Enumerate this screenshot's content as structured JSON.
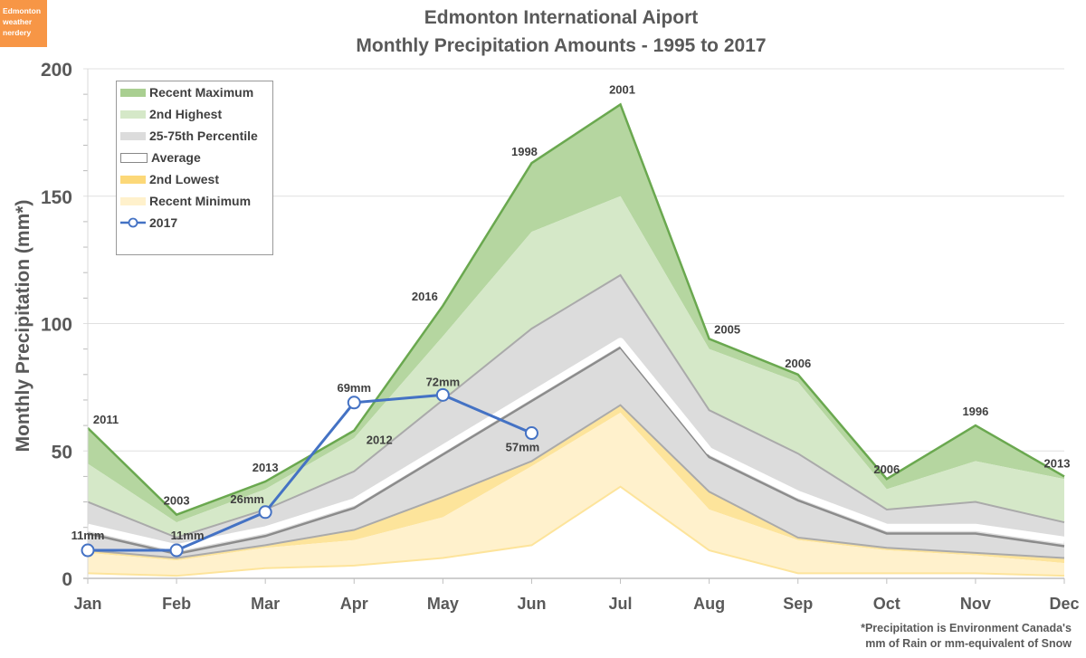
{
  "badge": {
    "text_lines": [
      "Edmonton",
      "weather",
      "nerdery"
    ]
  },
  "footnote": {
    "line1": "*Precipitation is Environment Canada's",
    "line2": "mm of Rain or mm-equivalent of Snow"
  },
  "chart_data": {
    "type": "area",
    "title": "Edmonton International Aiport",
    "subtitle": "Monthly Precipitation Amounts - 1995 to 2017",
    "xlabel": "",
    "ylabel": "Monthly Precipitation (mm*)",
    "ylim": [
      0,
      200
    ],
    "yticks": [
      0,
      50,
      100,
      150,
      200
    ],
    "grid": true,
    "legend_position": "top-left",
    "categories": [
      "Jan",
      "Feb",
      "Mar",
      "Apr",
      "May",
      "Jun",
      "Jul",
      "Aug",
      "Sep",
      "Oct",
      "Nov",
      "Dec"
    ],
    "series": [
      {
        "name": "Recent Maximum",
        "color": "#b5d6a0",
        "line_color": "#6aa84f",
        "values": [
          59,
          25,
          38,
          58,
          107,
          163,
          186,
          94,
          80,
          39,
          60,
          40
        ]
      },
      {
        "name": "2nd Highest",
        "color": "#d5e8c8",
        "values": [
          45,
          22,
          35,
          55,
          95,
          136,
          150,
          90,
          77,
          35,
          46,
          39
        ]
      },
      {
        "name": "25-75th Percentile",
        "color": "#dcdcdc",
        "upper": [
          30,
          16,
          27,
          42,
          70,
          98,
          119,
          66,
          49,
          27,
          30,
          22
        ],
        "lower": [
          11,
          8,
          13,
          19,
          32,
          46,
          68,
          34,
          16,
          12,
          10,
          8
        ]
      },
      {
        "name": "Average",
        "color": "#ffffff",
        "values": [
          20,
          12,
          19,
          30,
          51,
          72,
          93,
          50,
          33,
          20,
          20,
          15
        ]
      },
      {
        "name": "2nd Lowest",
        "color": "#fde49b",
        "values": [
          10,
          7,
          12,
          15,
          24,
          44,
          65,
          27,
          15,
          11,
          9,
          6
        ]
      },
      {
        "name": "Recent Minimum",
        "color": "#fff1cc",
        "line_color": "#fde49b",
        "values": [
          2,
          1,
          4,
          5,
          8,
          13,
          36,
          11,
          2,
          2,
          2,
          1
        ]
      },
      {
        "name": "2017",
        "color": "#4472c4",
        "values": [
          11,
          11,
          26,
          69,
          72,
          57,
          null,
          null,
          null,
          null,
          null,
          null
        ],
        "labels": [
          "11mm",
          "11mm",
          "26mm",
          "69mm",
          "72mm",
          "57mm"
        ]
      }
    ],
    "max_year_labels": [
      "2011",
      "2003",
      "2013",
      "2012",
      "2016",
      "1998",
      "2001",
      "2005",
      "2006",
      "2006",
      "1996",
      "2013"
    ]
  }
}
